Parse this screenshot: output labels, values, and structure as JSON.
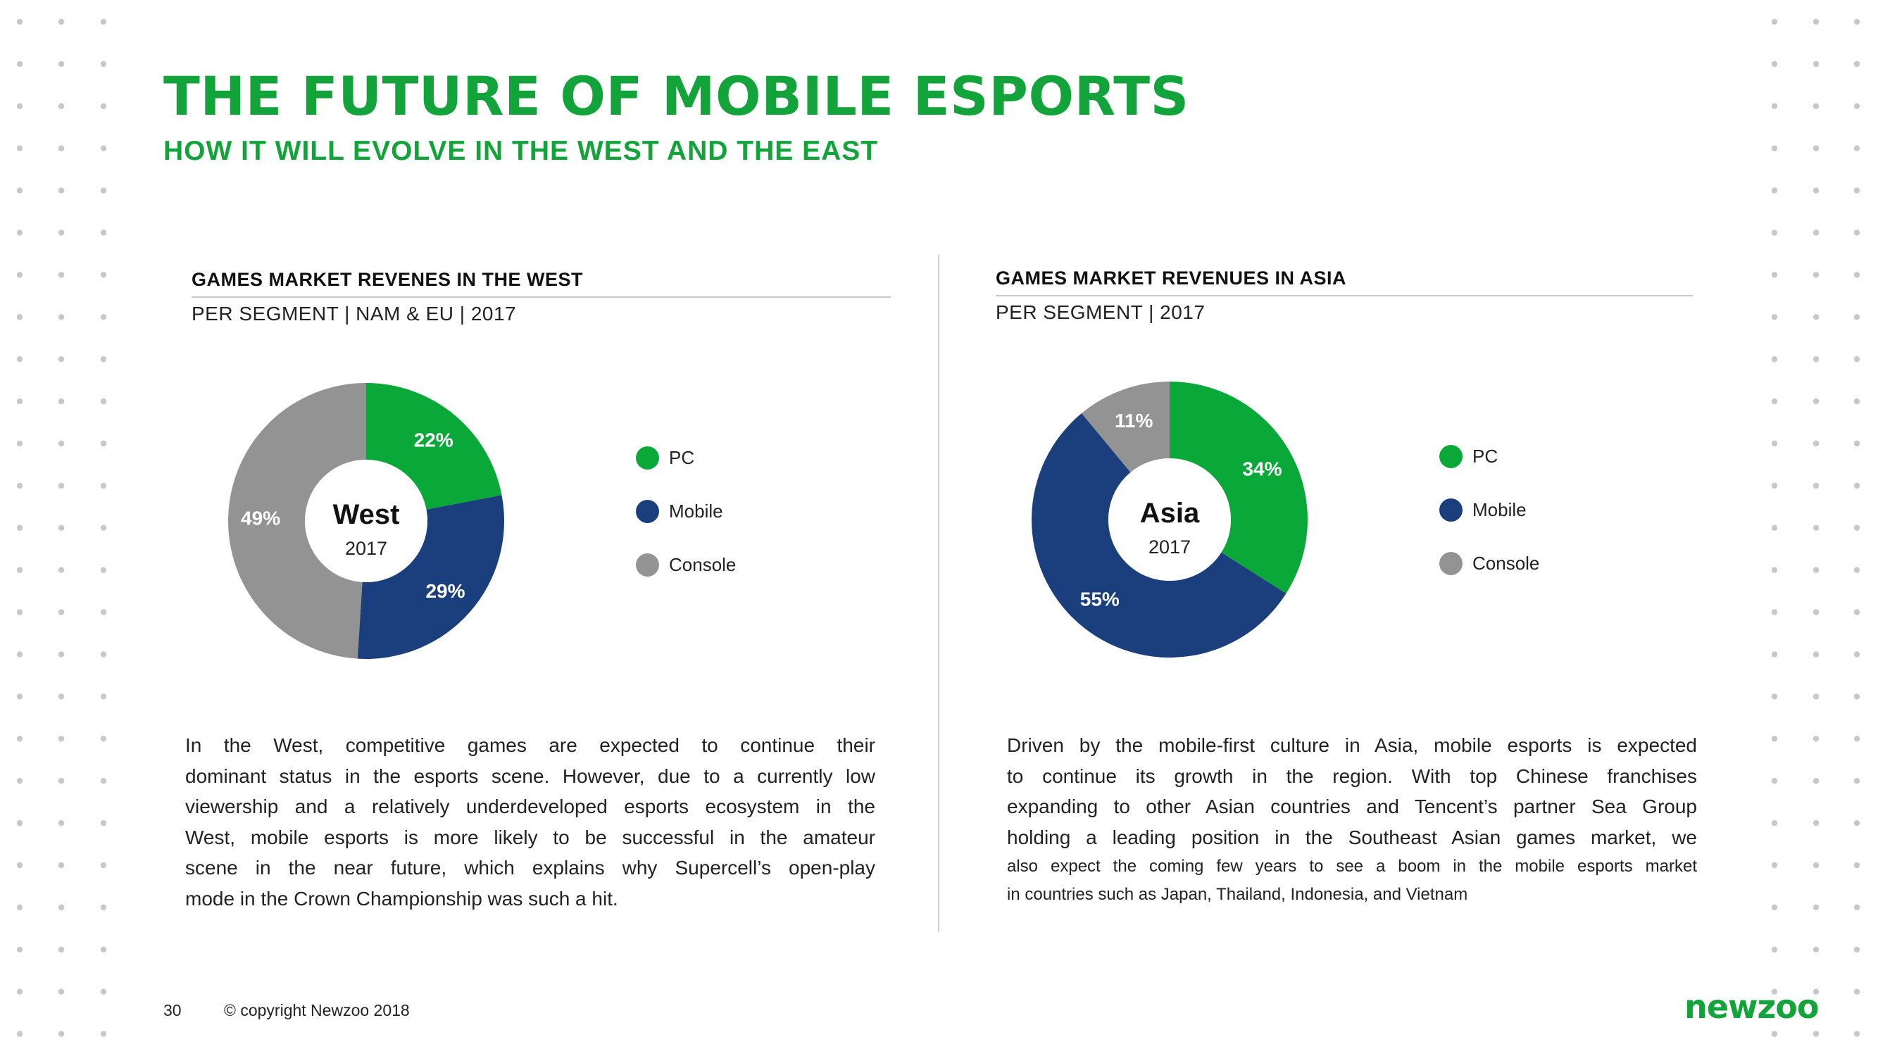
{
  "title": "THE FUTURE OF MOBILE ESPORTS",
  "subtitle": "HOW IT WILL EVOLVE IN THE WEST AND THE EAST",
  "colors": {
    "brand_green": "#12a33a",
    "pc": "#0aa838",
    "mobile": "#1b3f7d",
    "console": "#939393"
  },
  "west": {
    "heading": "GAMES MARKET REVENES IN THE WEST",
    "subheading": "PER SEGMENT | NAM & EU | 2017",
    "legend": [
      {
        "label": "PC",
        "color": "#0aa838"
      },
      {
        "label": "Mobile",
        "color": "#1b3f7d"
      },
      {
        "label": "Console",
        "color": "#939393"
      }
    ],
    "body_lines": [
      "In the West, competitive games are expected to continue their",
      "dominant status in the esports scene. However, due to a currently low",
      "viewership and a relatively underdeveloped esports ecosystem in the",
      "West, mobile esports is more likely to be successful in the amateur",
      "scene in the near future, which explains why Supercell’s open-play",
      "mode in the Crown Championship was such a hit."
    ]
  },
  "asia": {
    "heading": "GAMES MARKET REVENUES IN ASIA",
    "subheading": "PER SEGMENT | 2017",
    "legend": [
      {
        "label": "PC",
        "color": "#0aa838"
      },
      {
        "label": "Mobile",
        "color": "#1b3f7d"
      },
      {
        "label": "Console",
        "color": "#939393"
      }
    ],
    "body_lines": [
      "Driven by the mobile-first culture in Asia, mobile esports is expected",
      "to continue its growth in the region. With top Chinese franchises",
      "expanding to other Asian countries and Tencent’s partner Sea Group",
      "holding a leading position in the Southeast Asian games market, we"
    ],
    "body_small_lines": [
      "also expect the coming few years to see a boom in the mobile esports market",
      "in countries such as Japan, Thailand, Indonesia, and Vietnam"
    ]
  },
  "chart_data": [
    {
      "type": "pie",
      "title": "GAMES MARKET REVENES IN THE WEST",
      "center_label": "West",
      "center_sublabel": "2017",
      "categories": [
        "PC",
        "Mobile",
        "Console"
      ],
      "values": [
        22,
        29,
        49
      ],
      "labels": [
        "22%",
        "29%",
        "49%"
      ],
      "colors": [
        "#0aa838",
        "#1b3f7d",
        "#939393"
      ],
      "legend": "right"
    },
    {
      "type": "pie",
      "title": "GAMES MARKET REVENUES IN ASIA",
      "center_label": "Asia",
      "center_sublabel": "2017",
      "categories": [
        "PC",
        "Mobile",
        "Console"
      ],
      "values": [
        34,
        55,
        11
      ],
      "labels": [
        "34%",
        "55%",
        "11%"
      ],
      "colors": [
        "#0aa838",
        "#1b3f7d",
        "#939393"
      ],
      "legend": "right"
    }
  ],
  "footer": {
    "page_number": "30",
    "copyright": "© copyright Newzoo 2018",
    "logo": "newzoo"
  }
}
